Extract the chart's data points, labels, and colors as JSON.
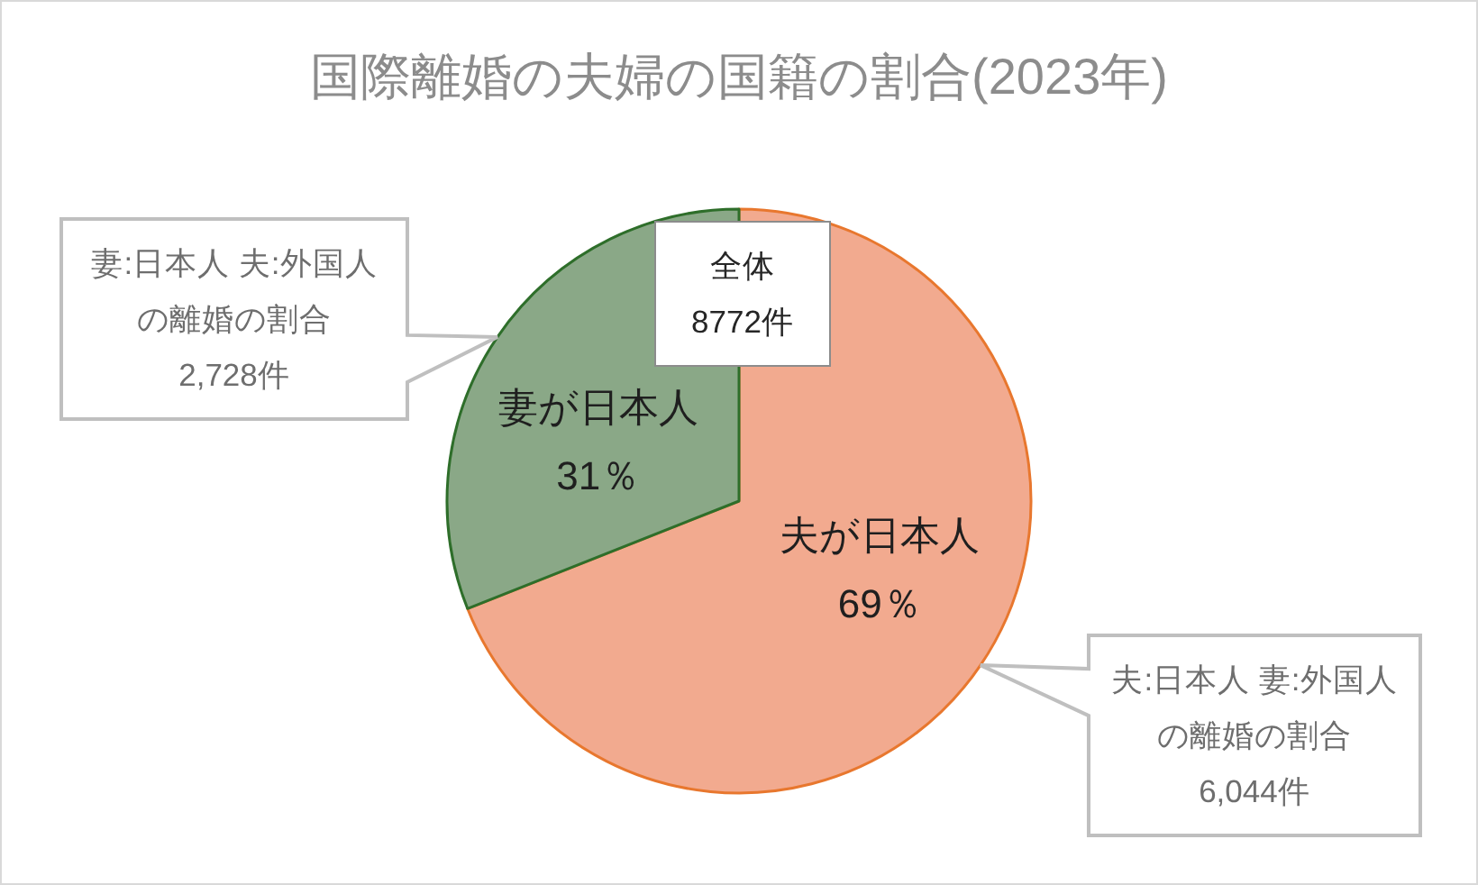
{
  "chart_data": {
    "type": "pie",
    "title": "国際離婚の夫婦の国籍の割合(2023年)",
    "categories": [
      "夫が日本人",
      "妻が日本人"
    ],
    "values": [
      69,
      31
    ],
    "colors": [
      "#f2aa8f",
      "#8aa887"
    ],
    "value_labels": [
      "69％",
      "31％"
    ],
    "annotations": [
      {
        "text": "妻:日本人 夫:外国人の離婚の割合\n2,728件",
        "x": "妻が日本人"
      },
      "全体\n8772件",
      {
        "text": "夫:日本人 妻:外国人の離婚の割合\n6,044件",
        "x": "夫が日本人"
      }
    ]
  }
}
